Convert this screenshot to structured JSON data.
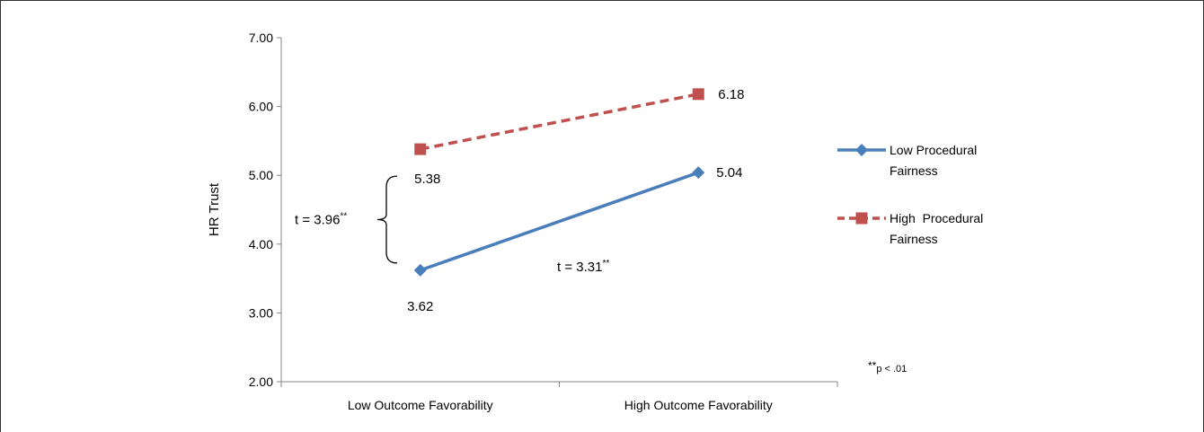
{
  "chart_data": {
    "type": "line",
    "categories": [
      "Low Outcome Favorability",
      "High Outcome Favorability"
    ],
    "ylabel": "HR Trust",
    "xlabel": "",
    "ylim": [
      2.0,
      7.0
    ],
    "yticks": [
      "2.00",
      "3.00",
      "4.00",
      "5.00",
      "6.00",
      "7.00"
    ],
    "grid": false,
    "legend_position": "right",
    "series": [
      {
        "name": "Low Procedural Fairness",
        "legend_lines": [
          "Low Procedural",
          "Fairness"
        ],
        "values": [
          3.62,
          5.04
        ],
        "labels": [
          "3.62",
          "5.04"
        ],
        "color": "#4a7ebb",
        "dashed": false,
        "marker": "diamond"
      },
      {
        "name": "High Procedural Fairness",
        "legend_lines": [
          "High  Procedural",
          "Fairness"
        ],
        "values": [
          5.38,
          6.18
        ],
        "labels": [
          "5.38",
          "6.18"
        ],
        "color": "#c0504d",
        "dashed": true,
        "marker": "square"
      }
    ],
    "annotations": {
      "t_bracket": {
        "text": "t = 3.96",
        "sup": "**"
      },
      "t_slope": {
        "text": "t = 3.31",
        "sup": "**"
      },
      "note": {
        "sup": "**",
        "text": "p < .01"
      }
    }
  }
}
